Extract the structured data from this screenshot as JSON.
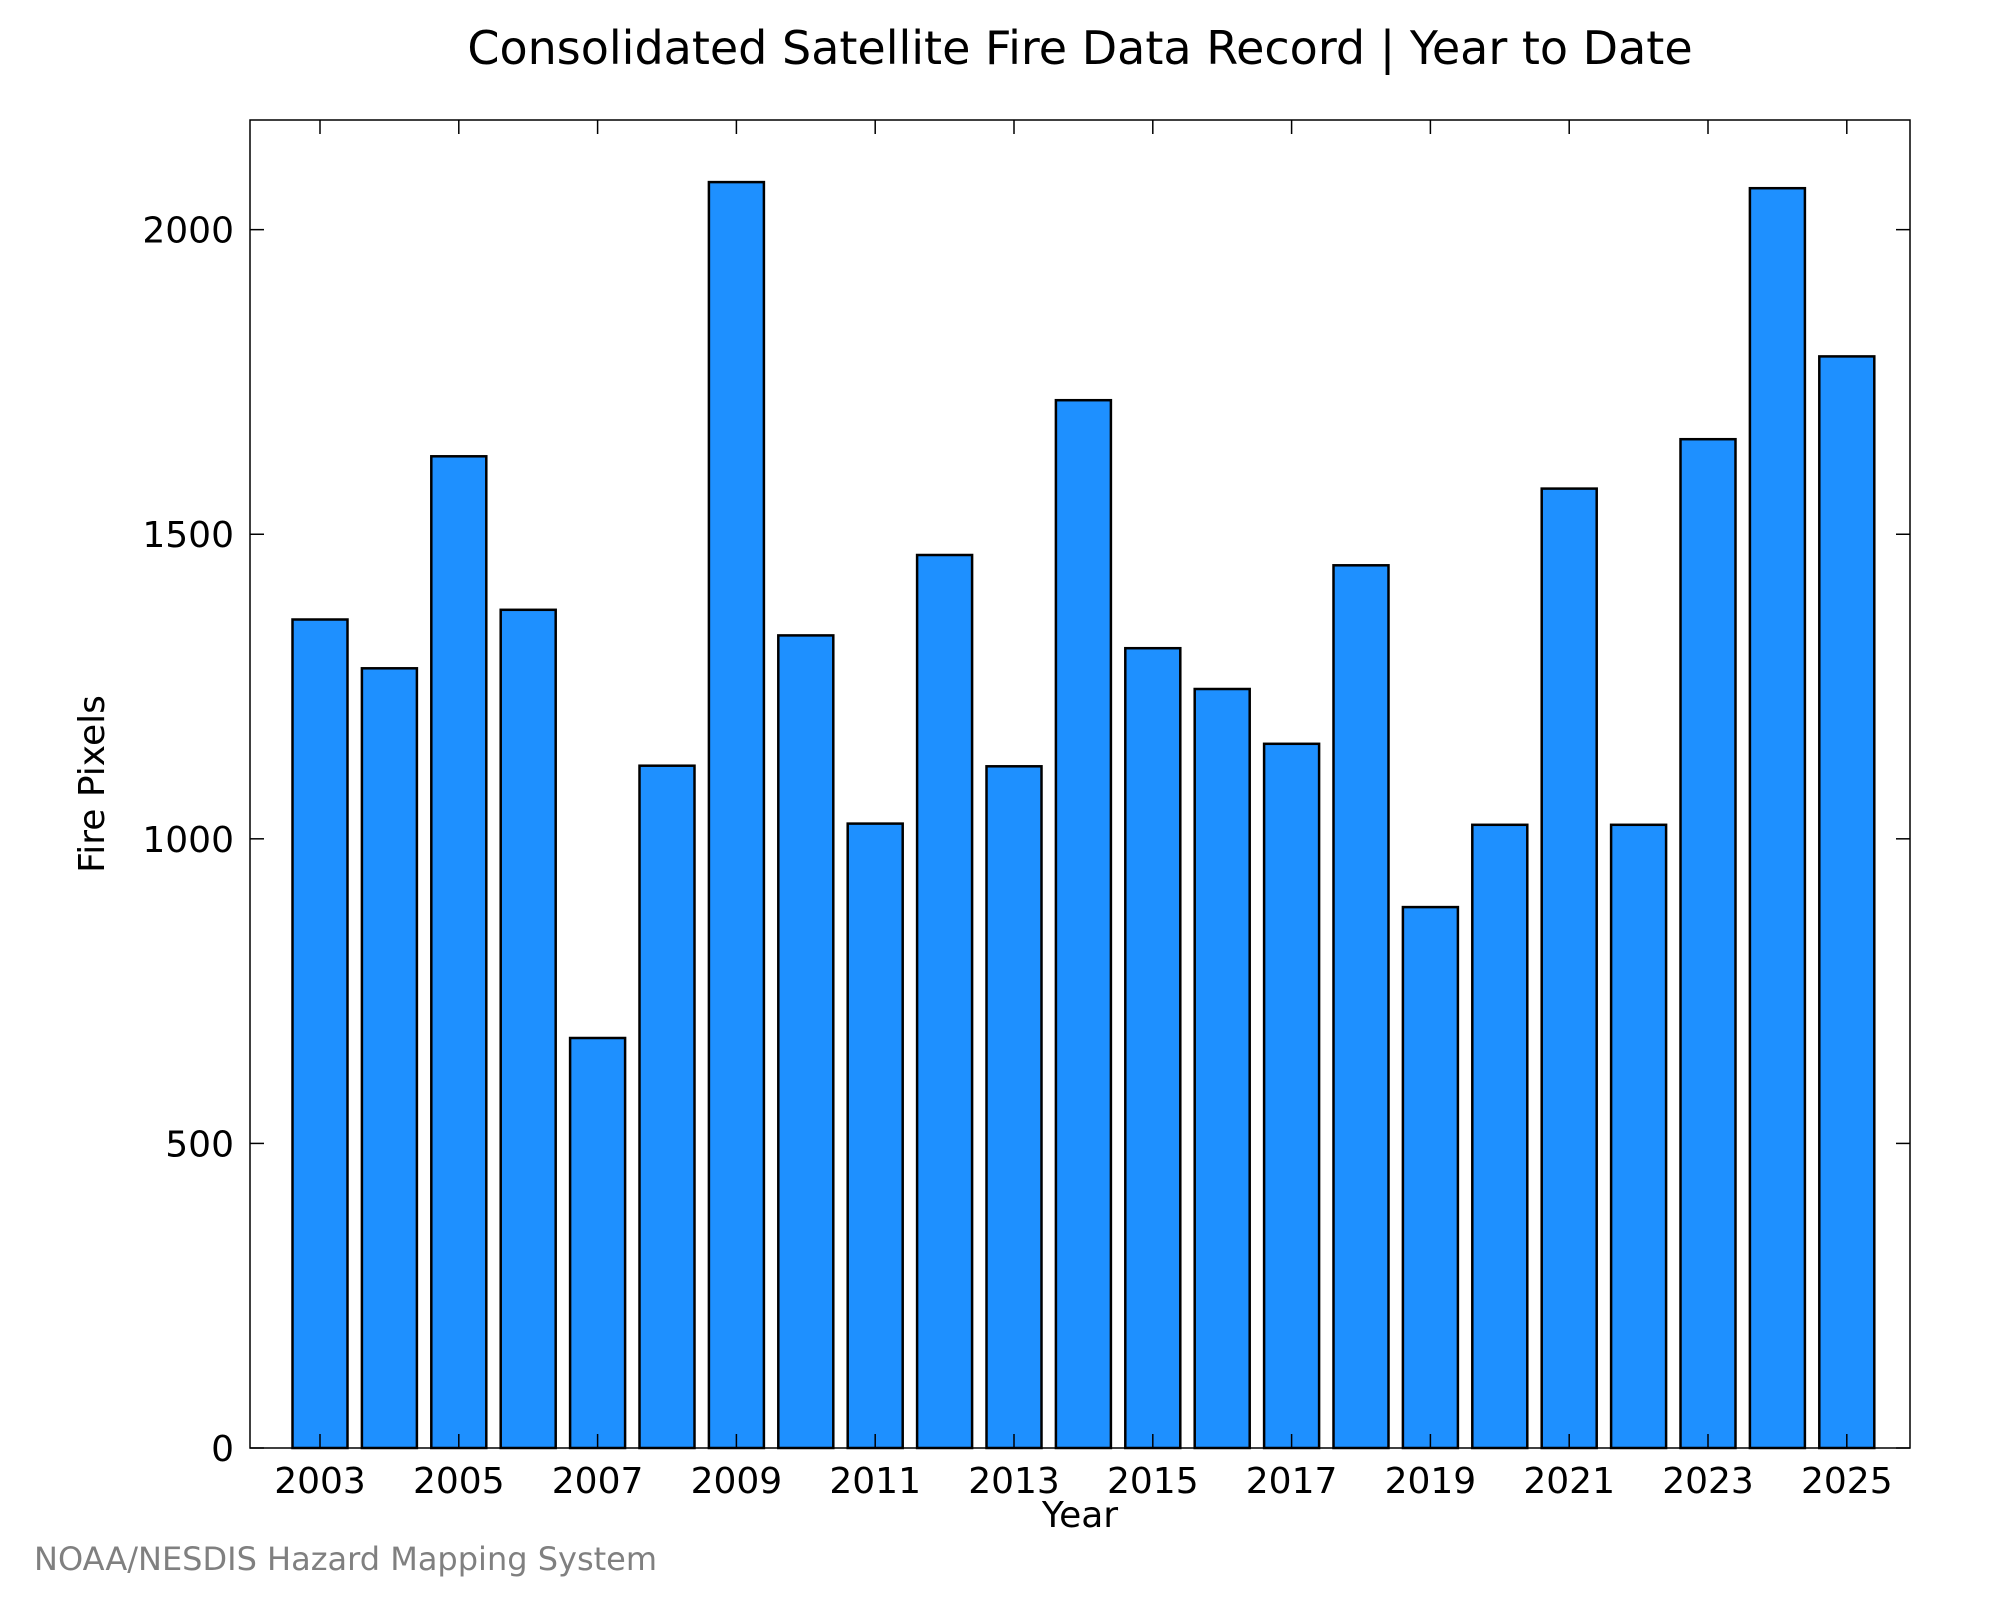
{
  "chart_data": {
    "type": "bar",
    "title": "Consolidated Satellite Fire Data Record | Year to Date",
    "xlabel": "Year",
    "ylabel": "Fire Pixels",
    "categories": [
      "2003",
      "2004",
      "2005",
      "2006",
      "2007",
      "2008",
      "2009",
      "2010",
      "2011",
      "2012",
      "2013",
      "2014",
      "2015",
      "2016",
      "2017",
      "2018",
      "2019",
      "2020",
      "2021",
      "2022",
      "2023",
      "2024",
      "2025"
    ],
    "values": [
      1360,
      1280,
      1628,
      1376,
      673,
      1120,
      2078,
      1334,
      1025,
      1466,
      1119,
      1720,
      1313,
      1246,
      1156,
      1449,
      888,
      1023,
      1575,
      1023,
      1656,
      2068,
      1792
    ],
    "x_tick_labels": [
      "2003",
      "2005",
      "2007",
      "2009",
      "2011",
      "2013",
      "2015",
      "2017",
      "2019",
      "2021",
      "2023",
      "2025"
    ],
    "y_ticks": [
      0,
      500,
      1000,
      1500,
      2000
    ],
    "ylim": [
      0,
      2180
    ],
    "bar_color": "#1e90ff",
    "edge_color": "#000000",
    "grid": false,
    "credit": "NOAA/NESDIS Hazard Mapping System"
  }
}
